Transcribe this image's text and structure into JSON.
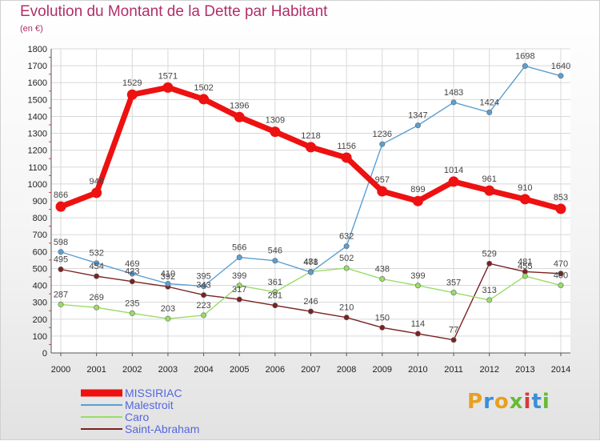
{
  "header": {
    "title": "Evolution du Montant de la Dette par Habitant",
    "subtitle": "(en €)"
  },
  "logo": {
    "text": "Proxiti"
  },
  "colors": {
    "MISSIRIAC": "#ee1111",
    "Malestroit": "#5a9fd2",
    "Caro": "#99dd66",
    "Saint-Abraham": "#7a2222",
    "title": "#b0306a",
    "legend_text": "#5566dd"
  },
  "chart_data": {
    "type": "line",
    "title": "Evolution du Montant de la Dette par Habitant",
    "subtitle": "(en €)",
    "xlabel": "",
    "ylabel": "",
    "ylim": [
      0,
      1800
    ],
    "yticks": [
      0,
      100,
      200,
      300,
      400,
      500,
      600,
      700,
      800,
      900,
      1000,
      1100,
      1200,
      1300,
      1400,
      1500,
      1600,
      1700,
      1800
    ],
    "grid": true,
    "legend": "bottom-left",
    "x": [
      "2000",
      "2001",
      "2002",
      "2003",
      "2004",
      "2005",
      "2006",
      "2007",
      "2008",
      "2009",
      "2010",
      "2011",
      "2012",
      "2013",
      "2014"
    ],
    "series": [
      {
        "name": "MISSIRIAC",
        "values": [
          866,
          948,
          1529,
          1571,
          1502,
          1396,
          1309,
          1218,
          1156,
          957,
          899,
          1014,
          961,
          910,
          853
        ]
      },
      {
        "name": "Malestroit",
        "values": [
          598,
          532,
          469,
          410,
          395,
          566,
          546,
          478,
          632,
          1236,
          1347,
          1483,
          1424,
          1698,
          1640
        ]
      },
      {
        "name": "Caro",
        "values": [
          287,
          269,
          235,
          203,
          223,
          399,
          361,
          481,
          502,
          438,
          399,
          357,
          313,
          455,
          400
        ]
      },
      {
        "name": "Saint-Abraham",
        "values": [
          495,
          454,
          423,
          392,
          343,
          317,
          281,
          246,
          210,
          150,
          114,
          77,
          529,
          481,
          470
        ]
      }
    ]
  }
}
